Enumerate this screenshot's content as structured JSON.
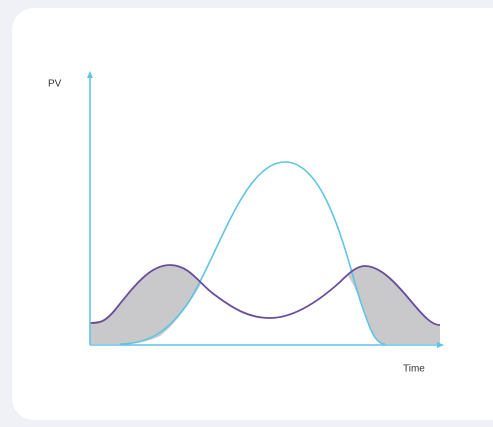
{
  "y_axis_label": "PV",
  "x_axis_label": "Time"
}
